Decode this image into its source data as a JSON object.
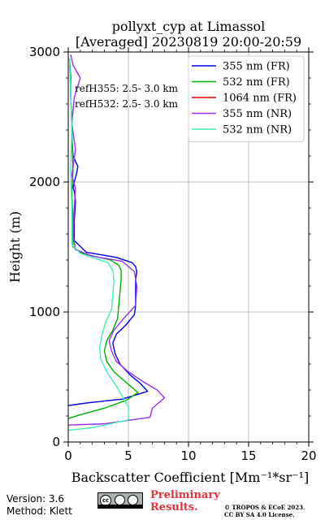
{
  "chart_data": {
    "type": "line",
    "title": "pollyxt_cyp at Limassol",
    "subtitle": "[Averaged] 20230819 20:00-20:59",
    "xlabel": "Backscatter Coefficient [Mm⁻¹*sr⁻¹]",
    "ylabel": "Height (m)",
    "xlim": [
      0,
      20
    ],
    "ylim": [
      0,
      3000
    ],
    "xticks": [
      "0",
      "5",
      "10",
      "15",
      "20"
    ],
    "yticks": [
      "0",
      "1000",
      "2000",
      "3000"
    ],
    "grid": true,
    "legend_position": "top-right",
    "annotations": [
      "refH355:  2.5- 3.0 km",
      "refH532:  2.5- 3.0 km"
    ],
    "series": [
      {
        "name": "355 nm (FR)",
        "color": "#0000ee",
        "x": [
          0.0,
          1.5,
          4.5,
          6.6,
          6.0,
          5.1,
          4.3,
          3.9,
          3.7,
          4.0,
          4.8,
          5.5,
          5.6,
          5.6,
          5.6,
          5.7,
          5.6,
          5.3,
          4.0,
          1.5,
          0.5,
          0.5,
          0.6,
          0.5,
          0.4,
          0.5,
          0.7,
          0.8,
          0.4,
          0.3,
          0.3,
          0.2,
          0.2,
          0.1
        ],
        "y": [
          280,
          300,
          330,
          390,
          450,
          520,
          600,
          680,
          760,
          830,
          900,
          980,
          1050,
          1150,
          1250,
          1310,
          1350,
          1380,
          1420,
          1460,
          1550,
          1700,
          1850,
          1930,
          1960,
          2000,
          2070,
          2120,
          2200,
          2350,
          2500,
          2650,
          2800,
          2950
        ]
      },
      {
        "name": "532 nm (FR)",
        "color": "#00b000",
        "x": [
          0.0,
          1.0,
          3.0,
          4.8,
          5.8,
          4.8,
          3.8,
          3.2,
          3.0,
          3.2,
          3.7,
          4.1,
          4.2,
          4.3,
          4.4,
          4.4,
          4.2,
          3.5,
          1.2,
          0.4,
          0.4,
          0.3,
          0.4,
          0.3,
          0.2,
          0.1
        ],
        "y": [
          180,
          210,
          260,
          320,
          380,
          460,
          540,
          620,
          700,
          780,
          860,
          950,
          1050,
          1150,
          1250,
          1320,
          1360,
          1400,
          1450,
          1500,
          1700,
          1900,
          2100,
          2400,
          2700,
          2950
        ]
      },
      {
        "name": "1064 nm (FR)",
        "color": "#dd0000",
        "x": [],
        "y": []
      },
      {
        "name": "355 nm (NR)",
        "color": "#9932ec",
        "x": [
          0.0,
          3.0,
          6.8,
          7.0,
          8.0,
          7.4,
          6.3,
          5.0,
          4.0,
          3.6,
          3.4,
          3.8,
          4.6,
          5.6,
          5.7,
          5.5,
          4.5,
          2.0,
          0.6,
          0.4,
          0.5,
          0.6,
          0.3,
          0.6,
          0.3,
          0.5,
          1.0,
          0.4,
          0.2
        ],
        "y": [
          130,
          140,
          190,
          260,
          340,
          400,
          460,
          540,
          620,
          700,
          780,
          860,
          950,
          1050,
          1200,
          1310,
          1390,
          1430,
          1480,
          1600,
          1800,
          1950,
          2050,
          2250,
          2450,
          2650,
          2800,
          2900,
          2980
        ]
      },
      {
        "name": "532 nm (NR)",
        "color": "#44eebb",
        "x": [
          0.0,
          2.0,
          5.0,
          5.0,
          4.0,
          3.2,
          2.7,
          2.6,
          2.8,
          3.1,
          3.6,
          3.7,
          3.8,
          3.7,
          3.3,
          1.0,
          0.3,
          0.3,
          0.2,
          0.3,
          0.2,
          0.1
        ],
        "y": [
          90,
          110,
          170,
          270,
          430,
          540,
          640,
          720,
          820,
          920,
          1020,
          1130,
          1240,
          1320,
          1380,
          1450,
          1520,
          1800,
          2100,
          2400,
          2700,
          2950
        ]
      }
    ]
  },
  "footer": {
    "version": "Version: 3.6",
    "method": "Method: Klett",
    "preliminary_line1": "Preliminary",
    "preliminary_line2": "Results.",
    "license_line1": "© TROPOS & ECoE 2023.",
    "license_line2": "CC BY SA 4.0 License."
  }
}
